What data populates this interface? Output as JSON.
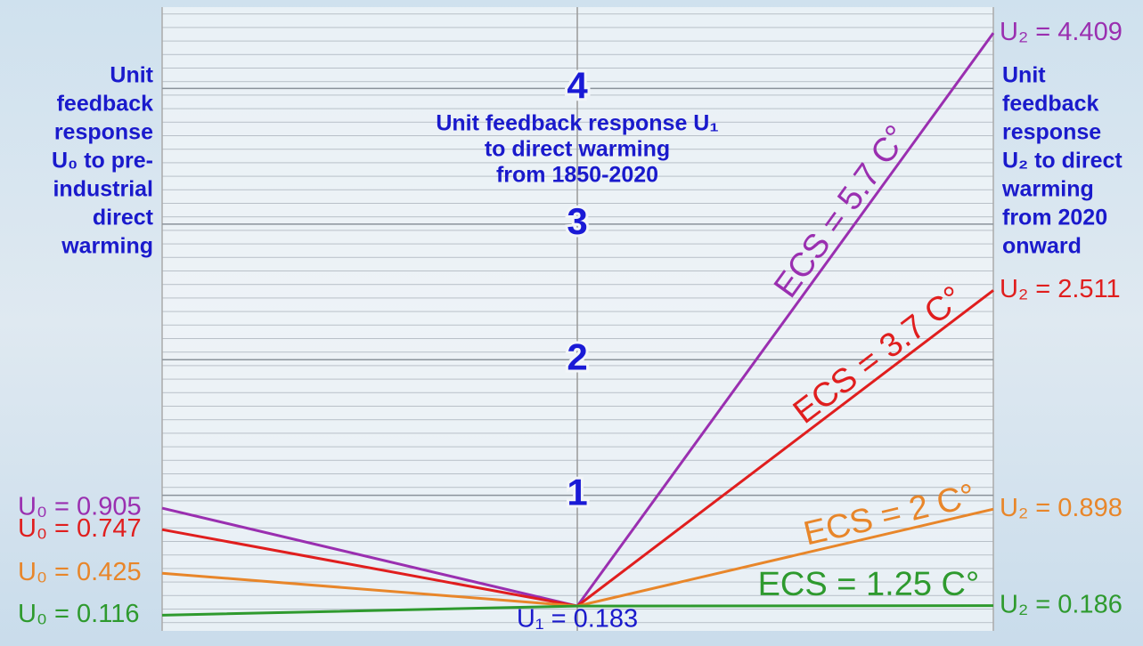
{
  "chart_data": {
    "type": "line",
    "categories": [
      null,
      null,
      null
    ],
    "ylim": [
      0,
      4.6
    ],
    "yticks": [
      1,
      2,
      3,
      4
    ],
    "grid": true,
    "series": [
      {
        "name": "ECS = 5.7 C°",
        "color": "#9a2fb0",
        "values": [
          0.905,
          0.183,
          4.409
        ],
        "value_labels": [
          "U₀ = 0.905",
          null,
          "U₂ = 4.409"
        ]
      },
      {
        "name": "ECS = 3.7 C°",
        "color": "#e01e1e",
        "values": [
          0.747,
          0.183,
          2.511
        ],
        "value_labels": [
          "U₀ = 0.747",
          null,
          "U₂ = 2.511"
        ]
      },
      {
        "name": "ECS = 2 C°",
        "color": "#e8862a",
        "values": [
          0.425,
          0.183,
          0.898
        ],
        "value_labels": [
          "U₀ = 0.425",
          null,
          "U₂ = 0.898"
        ]
      },
      {
        "name": "ECS = 1.25 C°",
        "color": "#2e9a2e",
        "values": [
          0.116,
          0.183,
          0.186
        ],
        "value_labels": [
          "U₀ = 0.116",
          "U₁ = 0.183",
          "U₂ = 0.186"
        ]
      }
    ],
    "annotations": {
      "left": [
        "Unit",
        "feedback",
        "response",
        "U₀ to pre-",
        "industrial",
        "direct",
        "warming"
      ],
      "center": [
        "Unit feedback response U₁",
        "to direct warming",
        "from 1850-2020"
      ],
      "right": [
        "Unit",
        "feedback",
        "response",
        "U₂ to direct",
        "warming",
        "from 2020",
        "onward"
      ]
    }
  }
}
